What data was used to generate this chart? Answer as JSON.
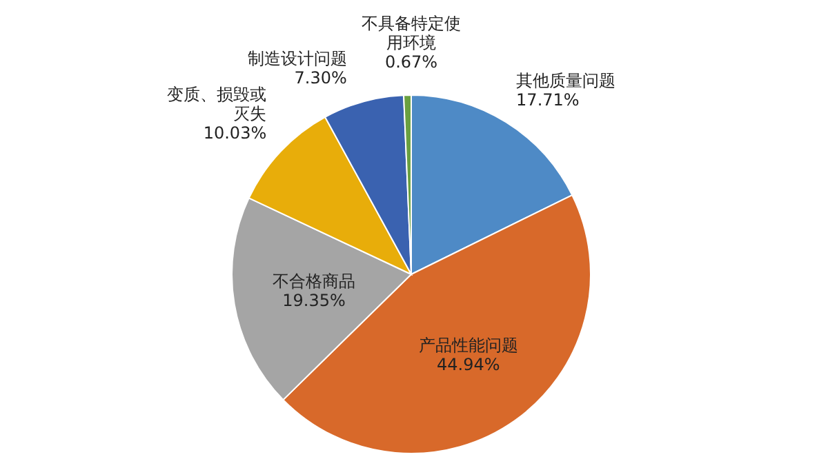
{
  "chart_data": {
    "type": "pie",
    "categories": [
      "其他质量问题",
      "产品性能问题",
      "不合格商品",
      "变质、损毁或灭失",
      "制造设计问题",
      "不具备特定使用环境"
    ],
    "values": [
      17.71,
      44.94,
      19.35,
      10.03,
      7.3,
      0.67
    ],
    "value_labels": [
      "17.71%",
      "44.94%",
      "19.35%",
      "10.03%",
      "7.30%",
      "0.67%"
    ],
    "colors": [
      "#4e8ac6",
      "#d8692a",
      "#a5a5a5",
      "#e8ad0a",
      "#3a62b0",
      "#6aa040"
    ]
  }
}
